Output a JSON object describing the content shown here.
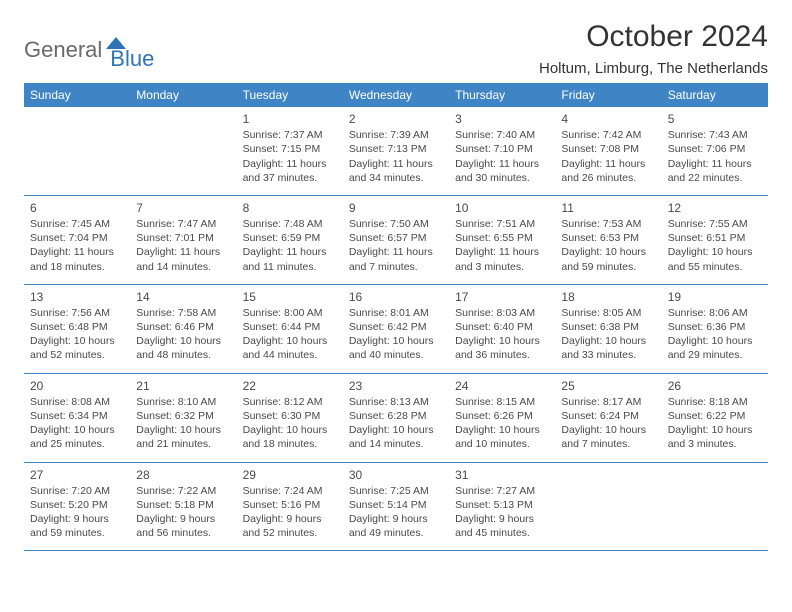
{
  "logo": {
    "general": "General",
    "blue": "Blue"
  },
  "title": "October 2024",
  "location": "Holtum, Limburg, The Netherlands",
  "colors": {
    "header_bg": "#3f85c6",
    "header_text": "#ffffff",
    "border": "#3f85c6",
    "text": "#4a4a4a",
    "logo_gray": "#6a6a6a",
    "logo_blue": "#2f74b5"
  },
  "weekdays": [
    "Sunday",
    "Monday",
    "Tuesday",
    "Wednesday",
    "Thursday",
    "Friday",
    "Saturday"
  ],
  "weeks": [
    [
      null,
      null,
      {
        "day": "1",
        "sunrise": "Sunrise: 7:37 AM",
        "sunset": "Sunset: 7:15 PM",
        "daylight": "Daylight: 11 hours and 37 minutes."
      },
      {
        "day": "2",
        "sunrise": "Sunrise: 7:39 AM",
        "sunset": "Sunset: 7:13 PM",
        "daylight": "Daylight: 11 hours and 34 minutes."
      },
      {
        "day": "3",
        "sunrise": "Sunrise: 7:40 AM",
        "sunset": "Sunset: 7:10 PM",
        "daylight": "Daylight: 11 hours and 30 minutes."
      },
      {
        "day": "4",
        "sunrise": "Sunrise: 7:42 AM",
        "sunset": "Sunset: 7:08 PM",
        "daylight": "Daylight: 11 hours and 26 minutes."
      },
      {
        "day": "5",
        "sunrise": "Sunrise: 7:43 AM",
        "sunset": "Sunset: 7:06 PM",
        "daylight": "Daylight: 11 hours and 22 minutes."
      }
    ],
    [
      {
        "day": "6",
        "sunrise": "Sunrise: 7:45 AM",
        "sunset": "Sunset: 7:04 PM",
        "daylight": "Daylight: 11 hours and 18 minutes."
      },
      {
        "day": "7",
        "sunrise": "Sunrise: 7:47 AM",
        "sunset": "Sunset: 7:01 PM",
        "daylight": "Daylight: 11 hours and 14 minutes."
      },
      {
        "day": "8",
        "sunrise": "Sunrise: 7:48 AM",
        "sunset": "Sunset: 6:59 PM",
        "daylight": "Daylight: 11 hours and 11 minutes."
      },
      {
        "day": "9",
        "sunrise": "Sunrise: 7:50 AM",
        "sunset": "Sunset: 6:57 PM",
        "daylight": "Daylight: 11 hours and 7 minutes."
      },
      {
        "day": "10",
        "sunrise": "Sunrise: 7:51 AM",
        "sunset": "Sunset: 6:55 PM",
        "daylight": "Daylight: 11 hours and 3 minutes."
      },
      {
        "day": "11",
        "sunrise": "Sunrise: 7:53 AM",
        "sunset": "Sunset: 6:53 PM",
        "daylight": "Daylight: 10 hours and 59 minutes."
      },
      {
        "day": "12",
        "sunrise": "Sunrise: 7:55 AM",
        "sunset": "Sunset: 6:51 PM",
        "daylight": "Daylight: 10 hours and 55 minutes."
      }
    ],
    [
      {
        "day": "13",
        "sunrise": "Sunrise: 7:56 AM",
        "sunset": "Sunset: 6:48 PM",
        "daylight": "Daylight: 10 hours and 52 minutes."
      },
      {
        "day": "14",
        "sunrise": "Sunrise: 7:58 AM",
        "sunset": "Sunset: 6:46 PM",
        "daylight": "Daylight: 10 hours and 48 minutes."
      },
      {
        "day": "15",
        "sunrise": "Sunrise: 8:00 AM",
        "sunset": "Sunset: 6:44 PM",
        "daylight": "Daylight: 10 hours and 44 minutes."
      },
      {
        "day": "16",
        "sunrise": "Sunrise: 8:01 AM",
        "sunset": "Sunset: 6:42 PM",
        "daylight": "Daylight: 10 hours and 40 minutes."
      },
      {
        "day": "17",
        "sunrise": "Sunrise: 8:03 AM",
        "sunset": "Sunset: 6:40 PM",
        "daylight": "Daylight: 10 hours and 36 minutes."
      },
      {
        "day": "18",
        "sunrise": "Sunrise: 8:05 AM",
        "sunset": "Sunset: 6:38 PM",
        "daylight": "Daylight: 10 hours and 33 minutes."
      },
      {
        "day": "19",
        "sunrise": "Sunrise: 8:06 AM",
        "sunset": "Sunset: 6:36 PM",
        "daylight": "Daylight: 10 hours and 29 minutes."
      }
    ],
    [
      {
        "day": "20",
        "sunrise": "Sunrise: 8:08 AM",
        "sunset": "Sunset: 6:34 PM",
        "daylight": "Daylight: 10 hours and 25 minutes."
      },
      {
        "day": "21",
        "sunrise": "Sunrise: 8:10 AM",
        "sunset": "Sunset: 6:32 PM",
        "daylight": "Daylight: 10 hours and 21 minutes."
      },
      {
        "day": "22",
        "sunrise": "Sunrise: 8:12 AM",
        "sunset": "Sunset: 6:30 PM",
        "daylight": "Daylight: 10 hours and 18 minutes."
      },
      {
        "day": "23",
        "sunrise": "Sunrise: 8:13 AM",
        "sunset": "Sunset: 6:28 PM",
        "daylight": "Daylight: 10 hours and 14 minutes."
      },
      {
        "day": "24",
        "sunrise": "Sunrise: 8:15 AM",
        "sunset": "Sunset: 6:26 PM",
        "daylight": "Daylight: 10 hours and 10 minutes."
      },
      {
        "day": "25",
        "sunrise": "Sunrise: 8:17 AM",
        "sunset": "Sunset: 6:24 PM",
        "daylight": "Daylight: 10 hours and 7 minutes."
      },
      {
        "day": "26",
        "sunrise": "Sunrise: 8:18 AM",
        "sunset": "Sunset: 6:22 PM",
        "daylight": "Daylight: 10 hours and 3 minutes."
      }
    ],
    [
      {
        "day": "27",
        "sunrise": "Sunrise: 7:20 AM",
        "sunset": "Sunset: 5:20 PM",
        "daylight": "Daylight: 9 hours and 59 minutes."
      },
      {
        "day": "28",
        "sunrise": "Sunrise: 7:22 AM",
        "sunset": "Sunset: 5:18 PM",
        "daylight": "Daylight: 9 hours and 56 minutes."
      },
      {
        "day": "29",
        "sunrise": "Sunrise: 7:24 AM",
        "sunset": "Sunset: 5:16 PM",
        "daylight": "Daylight: 9 hours and 52 minutes."
      },
      {
        "day": "30",
        "sunrise": "Sunrise: 7:25 AM",
        "sunset": "Sunset: 5:14 PM",
        "daylight": "Daylight: 9 hours and 49 minutes."
      },
      {
        "day": "31",
        "sunrise": "Sunrise: 7:27 AM",
        "sunset": "Sunset: 5:13 PM",
        "daylight": "Daylight: 9 hours and 45 minutes."
      },
      null,
      null
    ]
  ]
}
